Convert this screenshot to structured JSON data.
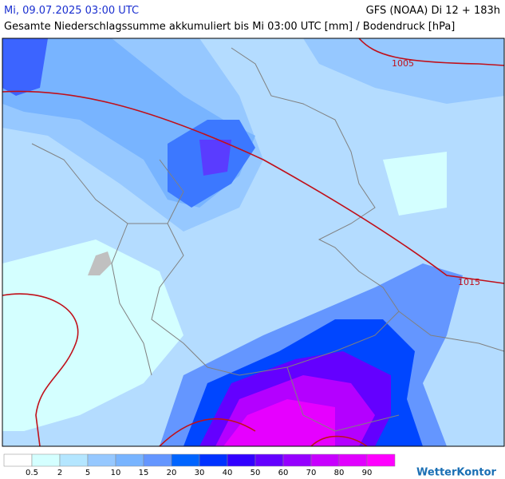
{
  "header": {
    "valid_time": "Mi, 09.07.2025 03:00 UTC",
    "model_run": "GFS (NOAA) Di 12 + 183h",
    "subtitle": "Gesamte Niederschlagssumme akkumuliert bis Mi 03:00 UTC [mm] / Bodendruck [hPa]"
  },
  "isobar_labels": [
    "1005",
    "1015"
  ],
  "legend": {
    "colors": [
      "#ffffff",
      "#d4ffff",
      "#b4e6ff",
      "#96c8ff",
      "#78b4ff",
      "#6496ff",
      "#0064ff",
      "#0032ff",
      "#3200ff",
      "#6400ff",
      "#9600ff",
      "#c800ff",
      "#e100ff",
      "#ff00ff",
      "#c800c8"
    ],
    "labels": [
      0.5,
      2,
      5,
      10,
      15,
      20,
      30,
      40,
      50,
      60,
      70,
      80,
      90
    ]
  },
  "brand": "WetterKontor"
}
